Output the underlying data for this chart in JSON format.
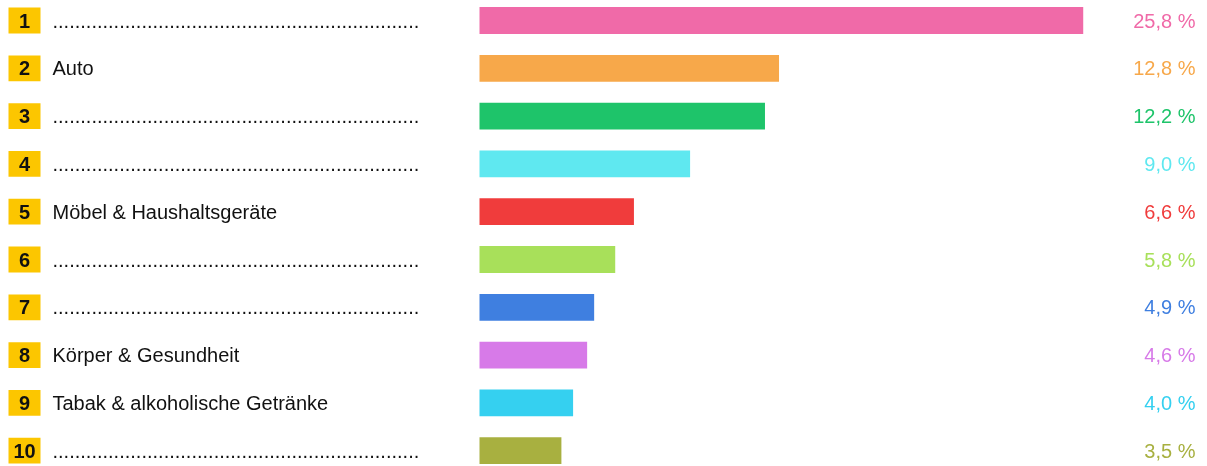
{
  "chart_data": {
    "type": "bar",
    "orientation": "horizontal",
    "categories": [
      "1 ..................................................................",
      "2 Auto",
      "3 ..................................................................",
      "4 ..................................................................",
      "5 Möbel & Haushaltsgeräte",
      "6 ..................................................................",
      "7 ..................................................................",
      "8 Körper & Gesundheit",
      "9 Tabak & alkoholische Getränke",
      "10 .................................................................."
    ],
    "values": [
      25.8,
      12.8,
      12.2,
      9.0,
      6.6,
      5.8,
      4.9,
      4.6,
      4.0,
      3.5
    ],
    "colors": [
      "#f06aa8",
      "#f7a84a",
      "#1ec46a",
      "#5fe8f0",
      "#f03c3c",
      "#a8e05a",
      "#3f7fe0",
      "#d77ae8",
      "#35d0f0",
      "#a8b040"
    ],
    "value_labels": [
      "25,8 %",
      "12,8 %",
      "12,2 %",
      "9,0 %",
      "6,6 %",
      "5,8 %",
      "4,9 %",
      "4,6 %",
      "4,0 %",
      "3,5 %"
    ]
  }
}
